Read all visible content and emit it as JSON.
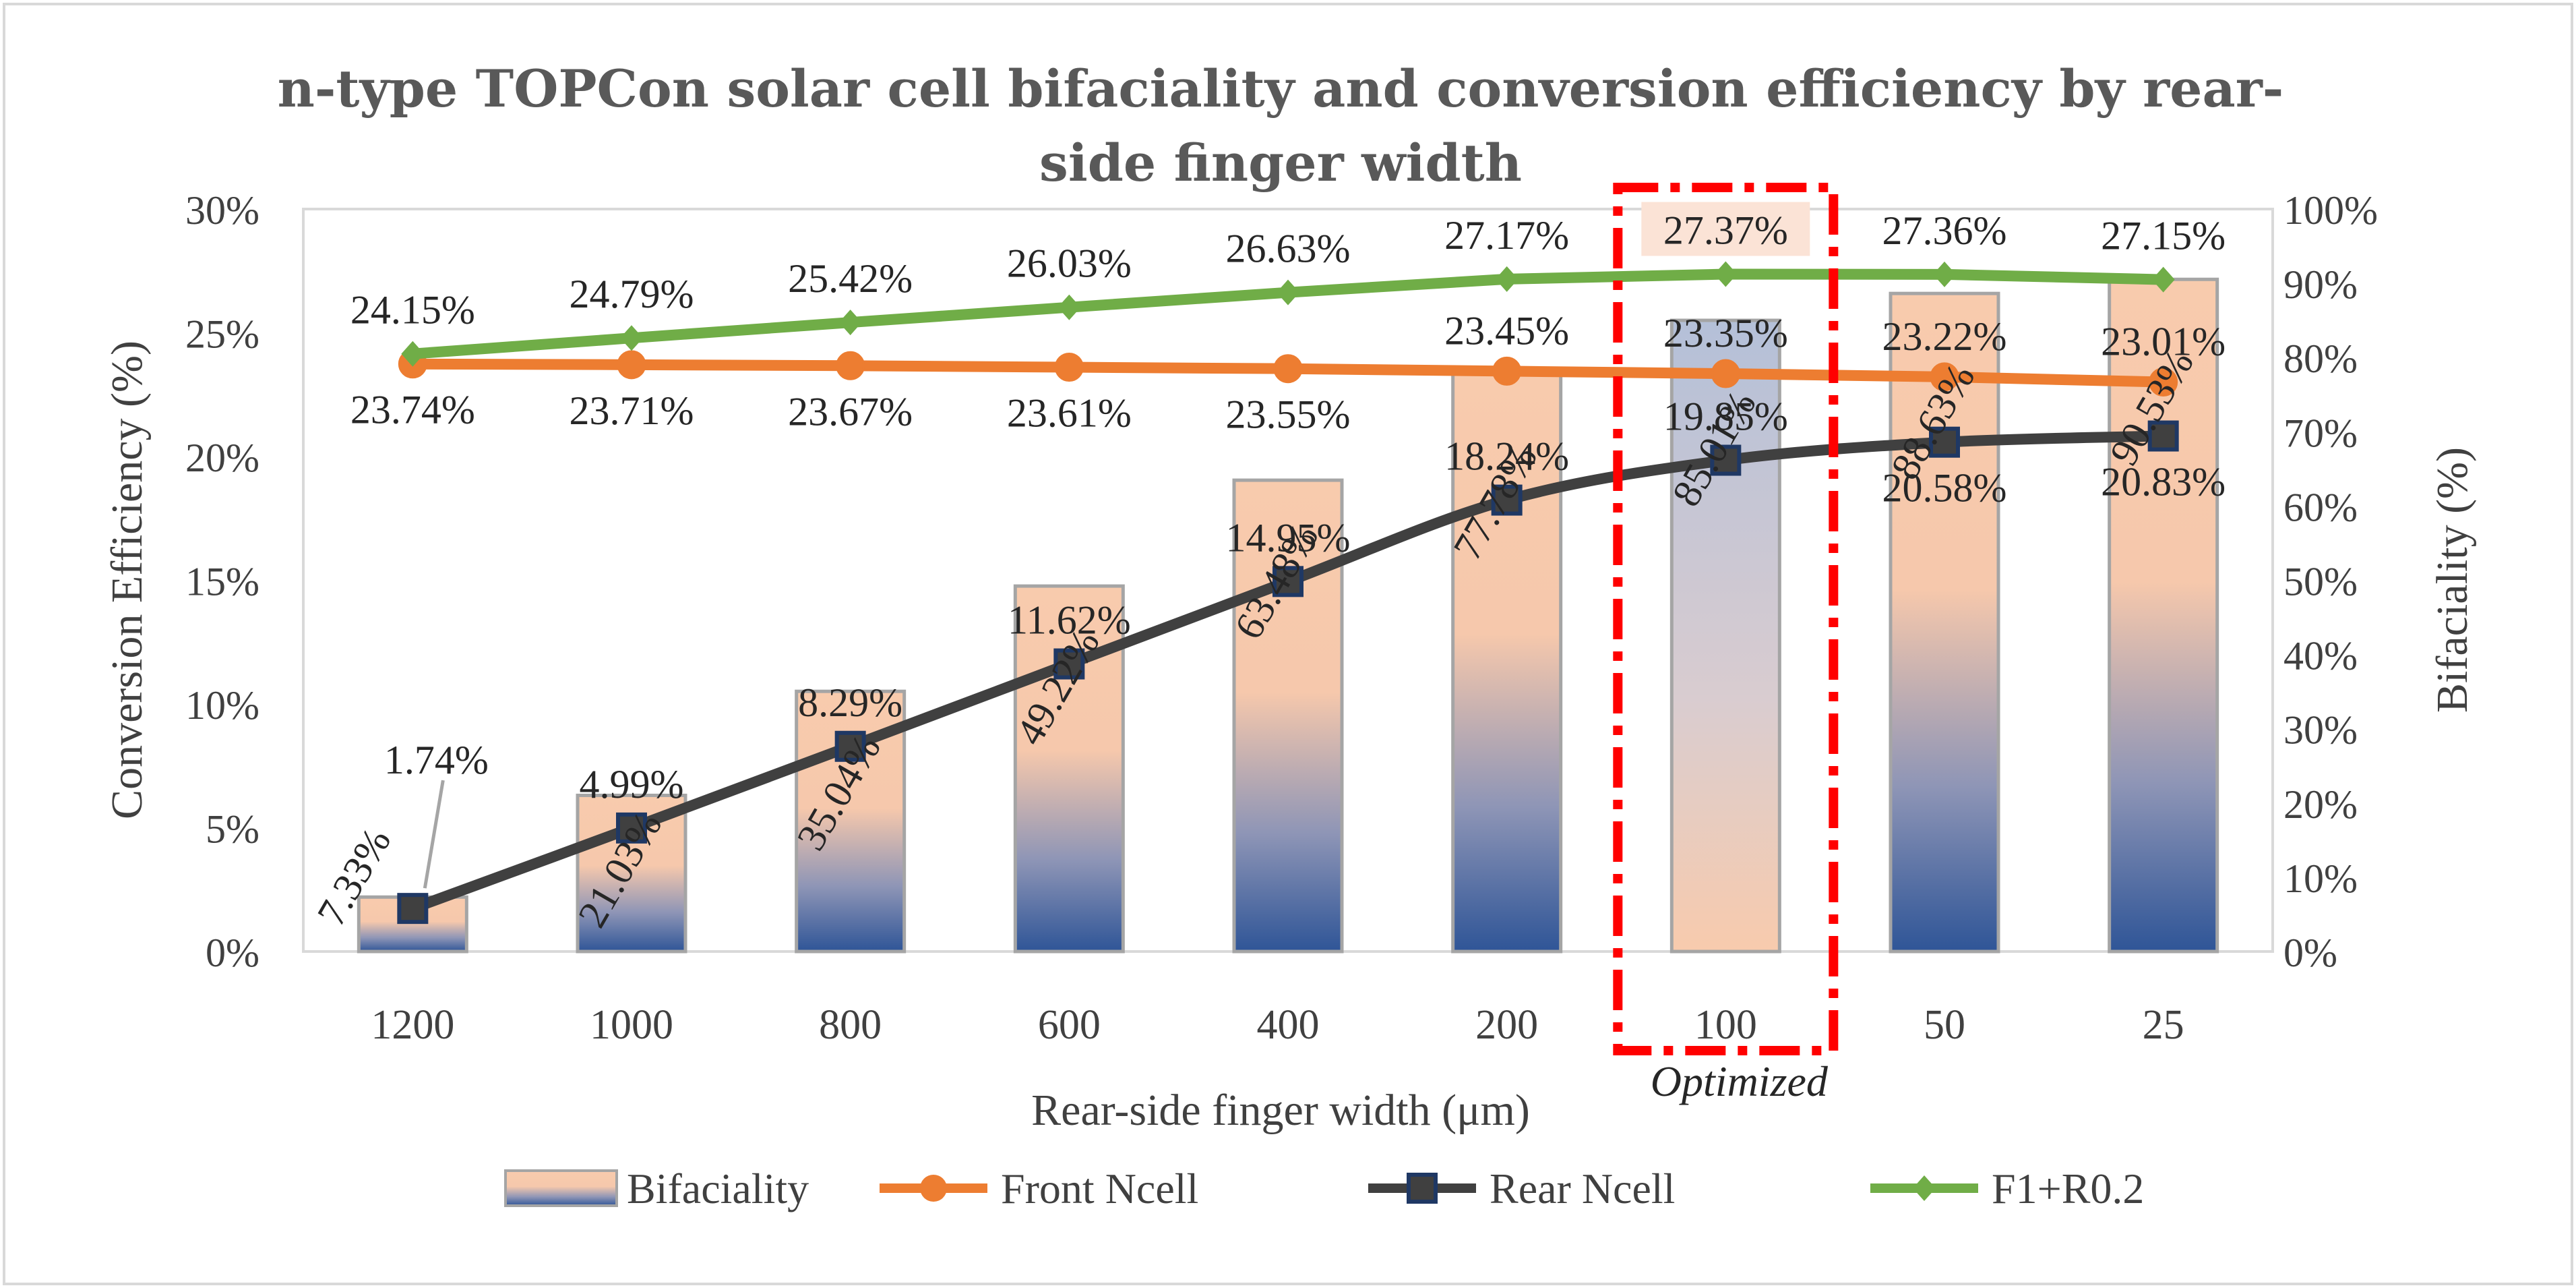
{
  "chart_data": {
    "type": "bar",
    "title": "n-type TOPCon solar cell bifaciality and conversion efficiency by rear-side finger width",
    "title_lines": [
      "n-type TOPCon solar cell bifaciality and conversion efficiency by rear-",
      "side finger width"
    ],
    "xlabel": "Rear-side finger width (μm)",
    "ylabel": "Conversion Efficiency (%)",
    "y2label": "Bifaciality (%)",
    "ylim": [
      0,
      30
    ],
    "y2lim": [
      0,
      100
    ],
    "y_ticks": [
      "0%",
      "5%",
      "10%",
      "15%",
      "20%",
      "25%",
      "30%"
    ],
    "y2_ticks": [
      "0%",
      "10%",
      "20%",
      "30%",
      "40%",
      "50%",
      "60%",
      "70%",
      "80%",
      "90%",
      "100%"
    ],
    "categories": [
      "1200",
      "1000",
      "800",
      "600",
      "400",
      "200",
      "100",
      "50",
      "25"
    ],
    "highlight_category": "100",
    "highlight_label": "Optimized",
    "series": [
      {
        "name": "Bifaciality",
        "type": "bar",
        "axis": "right",
        "values": [
          7.33,
          21.03,
          35.04,
          49.22,
          63.48,
          77.78,
          85.01,
          88.63,
          90.53
        ],
        "labels": [
          "7.33%",
          "21.03%",
          "35.04%",
          "49.22%",
          "63.48%",
          "77.78%",
          "85.01%",
          "88.63%",
          "90.53%"
        ]
      },
      {
        "name": "Front Ncell",
        "type": "line",
        "axis": "left",
        "color": "#ED7D31",
        "values": [
          23.74,
          23.71,
          23.67,
          23.61,
          23.55,
          23.45,
          23.35,
          23.22,
          23.01
        ],
        "labels": [
          "23.74%",
          "23.71%",
          "23.67%",
          "23.61%",
          "23.55%",
          "23.45%",
          "23.35%",
          "23.22%",
          "23.01%"
        ]
      },
      {
        "name": "Rear Ncell",
        "type": "line",
        "axis": "left",
        "color": "#404040",
        "values": [
          1.74,
          4.99,
          8.29,
          11.62,
          14.95,
          18.24,
          19.85,
          20.58,
          20.83
        ],
        "labels": [
          "1.74%",
          "4.99%",
          "8.29%",
          "11.62%",
          "14.95%",
          "18.24%",
          "19.85%",
          "20.58%",
          "20.83%"
        ]
      },
      {
        "name": "F1+R0.2",
        "type": "line",
        "axis": "left",
        "color": "#70AD47",
        "values": [
          24.15,
          24.79,
          25.42,
          26.03,
          26.63,
          27.17,
          27.37,
          27.36,
          27.15
        ],
        "labels": [
          "24.15%",
          "24.79%",
          "25.42%",
          "26.03%",
          "26.63%",
          "27.17%",
          "27.37%",
          "27.36%",
          "27.15%"
        ]
      }
    ],
    "legend": [
      "Bifaciality",
      "Front Ncell",
      "Rear Ncell",
      "F1+R0.2"
    ]
  }
}
